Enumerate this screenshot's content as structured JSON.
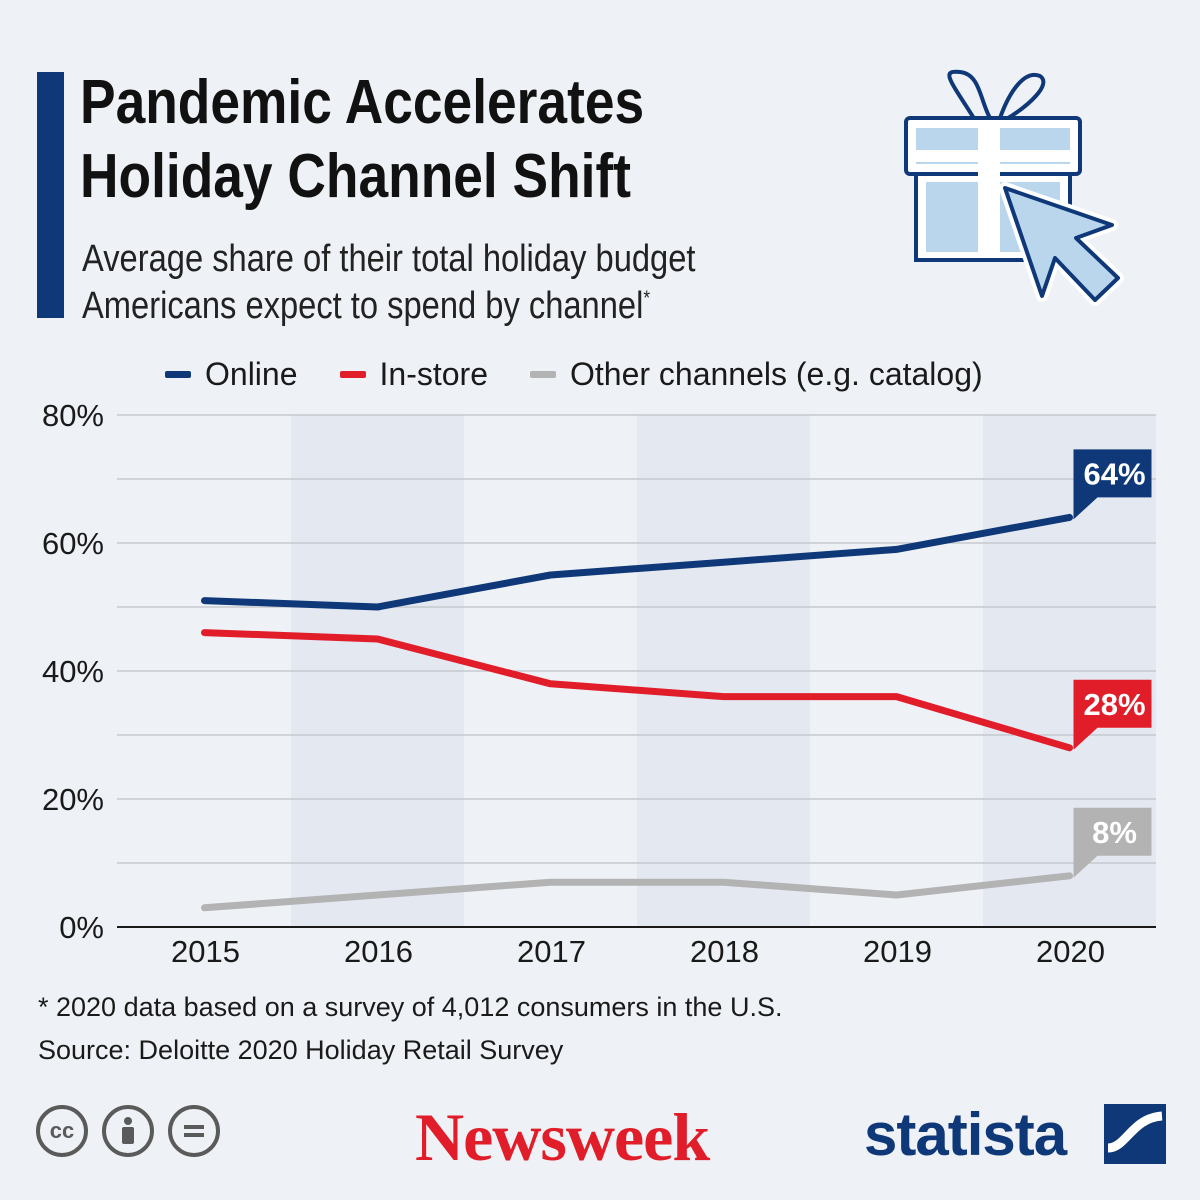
{
  "header": {
    "title_line1": "Pandemic Accelerates",
    "title_line2": "Holiday Channel Shift",
    "subtitle_line1": "Average share of their total holiday budget",
    "subtitle_line2": "Americans expect to spend by channel",
    "subtitle_mark": "*"
  },
  "footer": {
    "footnote": "* 2020 data based on a survey of 4,012 consumers in the U.S.",
    "source": "Source: Deloitte 2020 Holiday Retail Survey",
    "license_icons": [
      "cc-icon",
      "attribution-icon",
      "no-derivatives-icon"
    ],
    "logo_newsweek": "Newsweek",
    "logo_statista": "statista"
  },
  "colors": {
    "accent": "#0f3878",
    "online": "#0f3878",
    "instore": "#e21d2a",
    "other": "#b3b3b3",
    "band": "#e3e8f1"
  },
  "chart_data": {
    "type": "line",
    "categories": [
      "2015",
      "2016",
      "2017",
      "2018",
      "2019",
      "2020"
    ],
    "series": [
      {
        "name": "Online",
        "color": "#0f3878",
        "values": [
          51,
          50,
          55,
          57,
          59,
          64
        ],
        "end_label": "64%"
      },
      {
        "name": "In-store",
        "color": "#e21d2a",
        "values": [
          46,
          45,
          38,
          36,
          36,
          28
        ],
        "end_label": "28%"
      },
      {
        "name": "Other channels (e.g. catalog)",
        "color": "#b3b3b3",
        "values": [
          3,
          5,
          7,
          7,
          5,
          8
        ],
        "end_label": "8%"
      }
    ],
    "y_ticks": [
      "0%",
      "20%",
      "40%",
      "60%",
      "80%"
    ],
    "ylim": [
      0,
      80
    ],
    "grid": true,
    "legend_position": "top"
  }
}
